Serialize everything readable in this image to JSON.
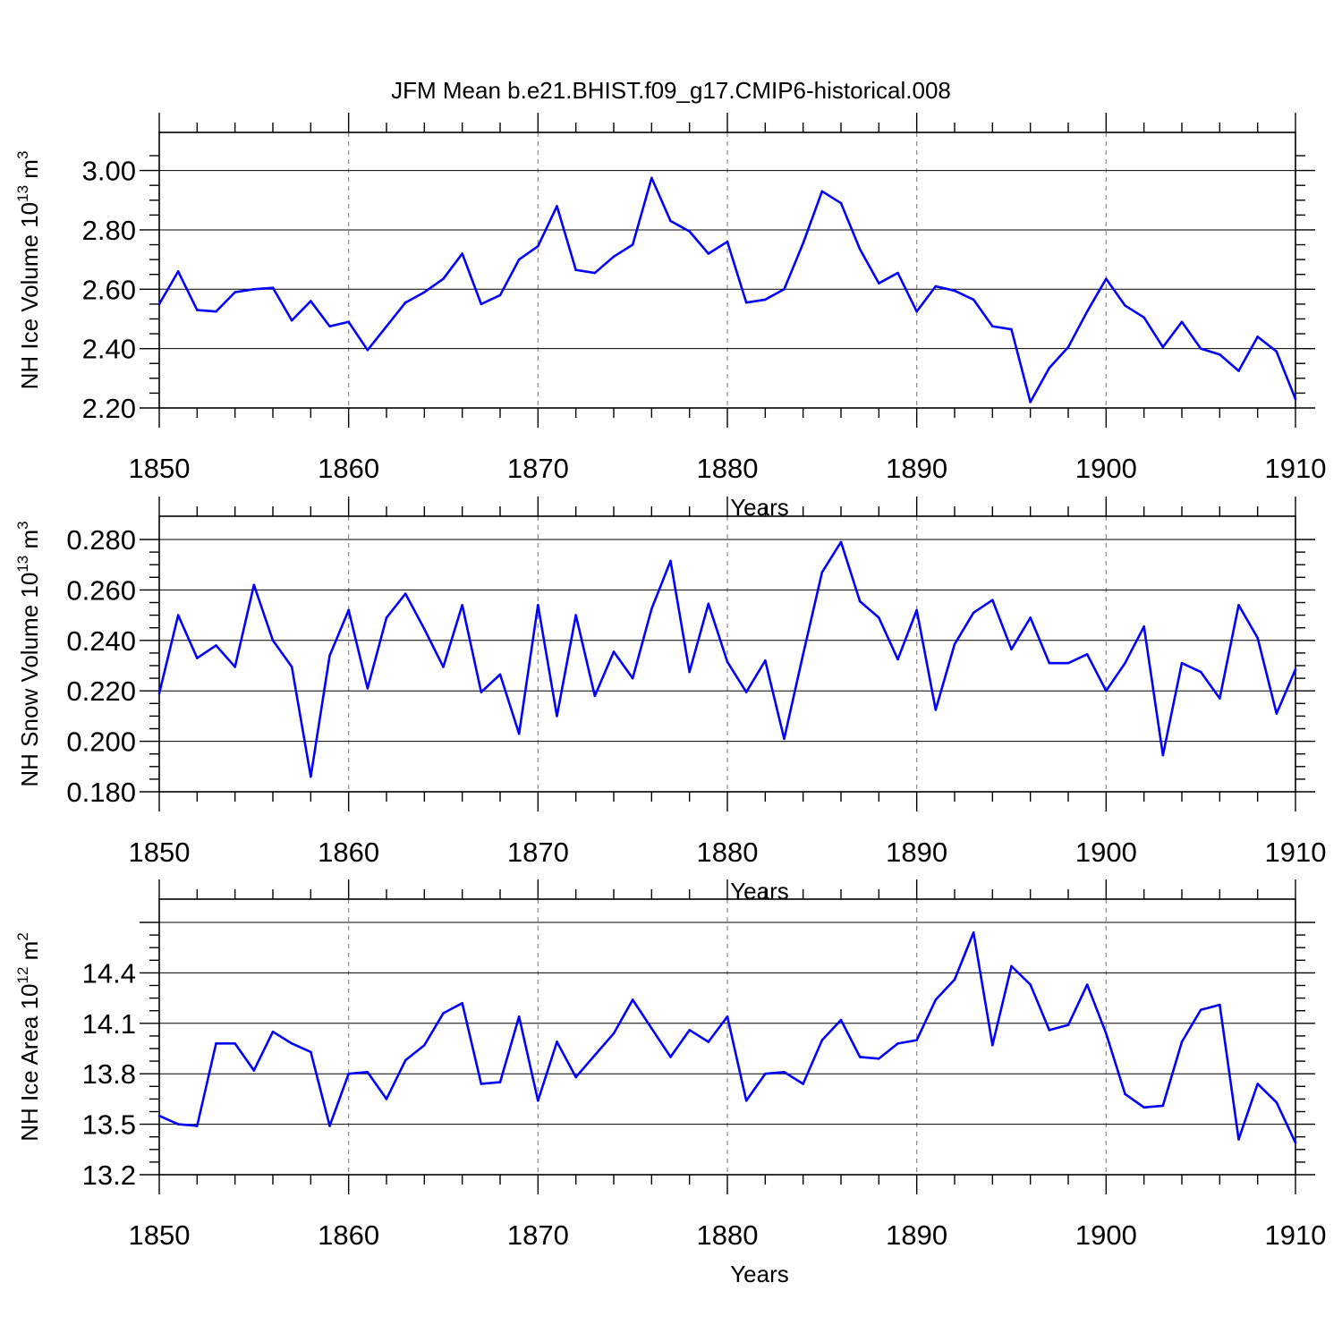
{
  "title": "JFM Mean b.e21.BHIST.f09_g17.CMIP6-historical.008",
  "colors": {
    "series": "#0000ff",
    "axis": "#000000",
    "grid": "#888888"
  },
  "chart_data": [
    {
      "type": "line",
      "ylabel": "NH Ice Volume 10",
      "ylabel_exp": "13",
      "ylabel_unit": " m",
      "ylabel_unit_exp": "3",
      "xlabel": "Years",
      "xlim": [
        1850,
        1910
      ],
      "ylim": [
        2.2,
        3.05
      ],
      "yticks": [
        "2.20",
        "2.40",
        "2.60",
        "2.80",
        "3.00"
      ],
      "xticks": [
        "1850",
        "1860",
        "1870",
        "1880",
        "1890",
        "1900",
        "1910"
      ],
      "x_start": 1850,
      "values": [
        2.55,
        2.66,
        2.53,
        2.525,
        2.59,
        2.6,
        2.605,
        2.495,
        2.56,
        2.475,
        2.49,
        2.395,
        2.475,
        2.555,
        2.59,
        2.635,
        2.72,
        2.55,
        2.58,
        2.7,
        2.745,
        2.88,
        2.665,
        2.655,
        2.71,
        2.75,
        2.975,
        2.83,
        2.795,
        2.72,
        2.76,
        2.555,
        2.565,
        2.6,
        2.755,
        2.93,
        2.89,
        2.735,
        2.62,
        2.655,
        2.525,
        2.61,
        2.595,
        2.565,
        2.475,
        2.465,
        2.22,
        2.335,
        2.405,
        2.525,
        2.635,
        2.545,
        2.505,
        2.405,
        2.49,
        2.4,
        2.38,
        2.325,
        2.44,
        2.39,
        2.23
      ]
    },
    {
      "type": "line",
      "ylabel": "NH Snow Volume 10",
      "ylabel_exp": "13",
      "ylabel_unit": " m",
      "ylabel_unit_exp": "3",
      "xlabel": "Years",
      "xlim": [
        1850,
        1910
      ],
      "ylim": [
        0.18,
        0.28
      ],
      "yticks": [
        "0.180",
        "0.200",
        "0.220",
        "0.240",
        "0.260",
        "0.280"
      ],
      "xticks": [
        "1850",
        "1860",
        "1870",
        "1880",
        "1890",
        "1900",
        "1910"
      ],
      "x_start": 1850,
      "values": [
        0.219,
        0.25,
        0.233,
        0.238,
        0.2295,
        0.262,
        0.24,
        0.2295,
        0.186,
        0.234,
        0.252,
        0.221,
        0.249,
        0.2585,
        0.2445,
        0.2295,
        0.254,
        0.2195,
        0.2265,
        0.203,
        0.254,
        0.21,
        0.25,
        0.218,
        0.2355,
        0.225,
        0.2525,
        0.2715,
        0.2275,
        0.2545,
        0.2315,
        0.2195,
        0.232,
        0.201,
        0.2345,
        0.267,
        0.279,
        0.2555,
        0.249,
        0.2325,
        0.252,
        0.2125,
        0.2385,
        0.251,
        0.256,
        0.2365,
        0.249,
        0.231,
        0.231,
        0.2345,
        0.22,
        0.231,
        0.2455,
        0.1945,
        0.231,
        0.2275,
        0.217,
        0.254,
        0.241,
        0.211,
        0.2285
      ]
    },
    {
      "type": "line",
      "ylabel": "NH Ice Area 10",
      "ylabel_exp": "12",
      "ylabel_unit": " m",
      "ylabel_unit_exp": "2",
      "xlabel": "Years",
      "xlim": [
        1850,
        1910
      ],
      "ylim": [
        13.2,
        14.7
      ],
      "yticks": [
        "13.2",
        "13.5",
        "13.8",
        "14.1",
        "14.4"
      ],
      "xticks": [
        "1850",
        "1860",
        "1870",
        "1880",
        "1890",
        "1900",
        "1910"
      ],
      "x_start": 1850,
      "values": [
        13.55,
        13.5,
        13.49,
        13.98,
        13.98,
        13.82,
        14.05,
        13.98,
        13.93,
        13.49,
        13.8,
        13.81,
        13.65,
        13.88,
        13.97,
        14.16,
        14.22,
        13.74,
        13.75,
        14.14,
        13.64,
        13.99,
        13.78,
        13.91,
        14.04,
        14.24,
        14.07,
        13.9,
        14.06,
        13.99,
        14.14,
        13.64,
        13.8,
        13.81,
        13.74,
        14.0,
        14.12,
        13.9,
        13.89,
        13.98,
        14.0,
        14.24,
        14.36,
        14.64,
        13.97,
        14.44,
        14.33,
        14.06,
        14.09,
        14.33,
        14.04,
        13.68,
        13.6,
        13.61,
        13.99,
        14.18,
        14.21,
        13.41,
        13.74,
        13.63,
        13.39
      ]
    }
  ]
}
